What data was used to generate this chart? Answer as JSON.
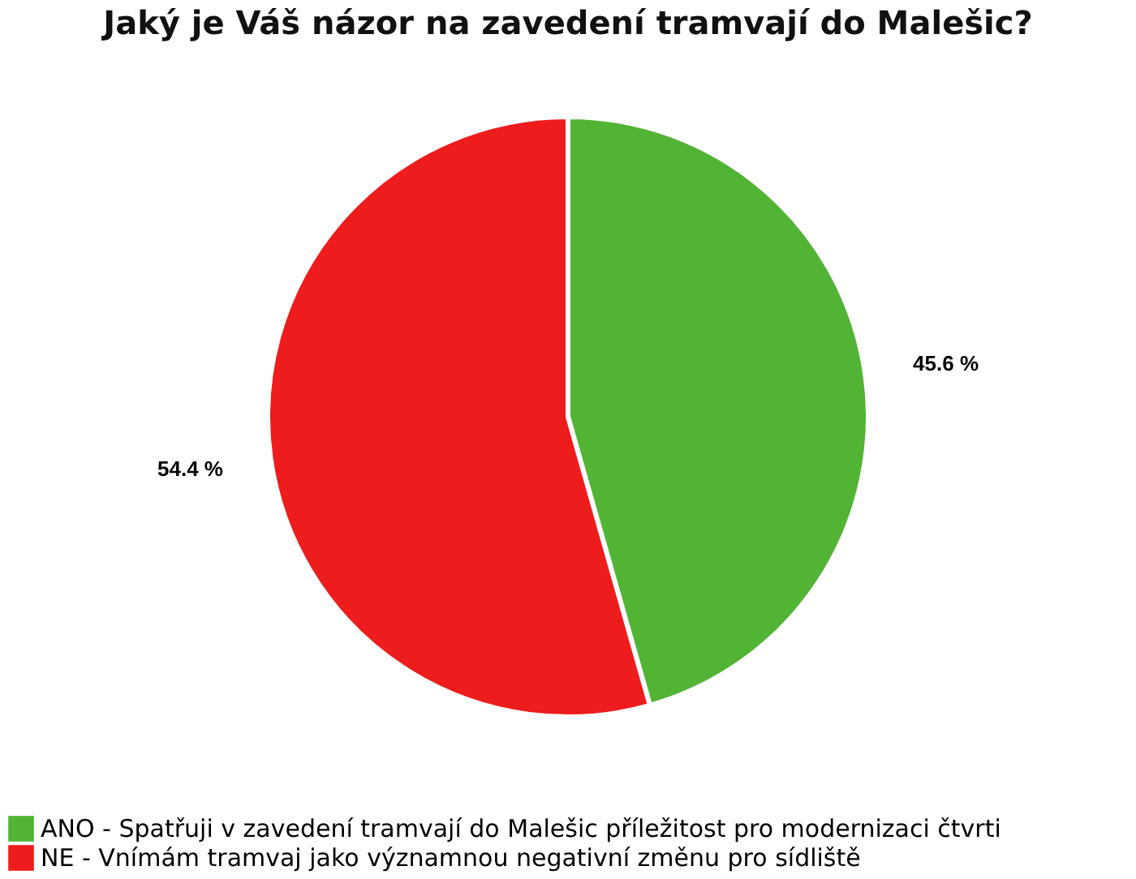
{
  "chart_data": {
    "type": "pie",
    "title": "Jaký je Váš názor na zavedení tramvají do Malešic?",
    "categories": [
      "ANO - Spatřuji v zavedení tramvají do Malešic příležitost pro modernizaci čtvrti",
      "NE - Vnímám tramvaj jako významnou negativní změnu pro sídliště"
    ],
    "values": [
      45.6,
      54.4
    ],
    "colors": [
      "#52b435",
      "#ee1c1c"
    ],
    "value_labels": [
      "45.6 %",
      "54.4 %"
    ],
    "legend": "bottom"
  }
}
